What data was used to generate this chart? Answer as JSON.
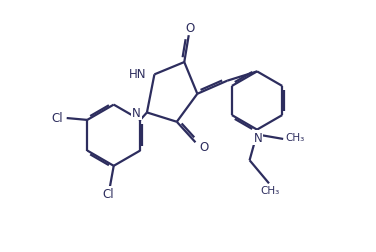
{
  "bg_color": "#ffffff",
  "line_color": "#2d2d5e",
  "line_width": 1.6,
  "font_size": 8.5,
  "figsize": [
    3.76,
    2.53
  ],
  "dpi": 100,
  "xlim": [
    0,
    10
  ],
  "ylim": [
    0,
    6.7
  ]
}
